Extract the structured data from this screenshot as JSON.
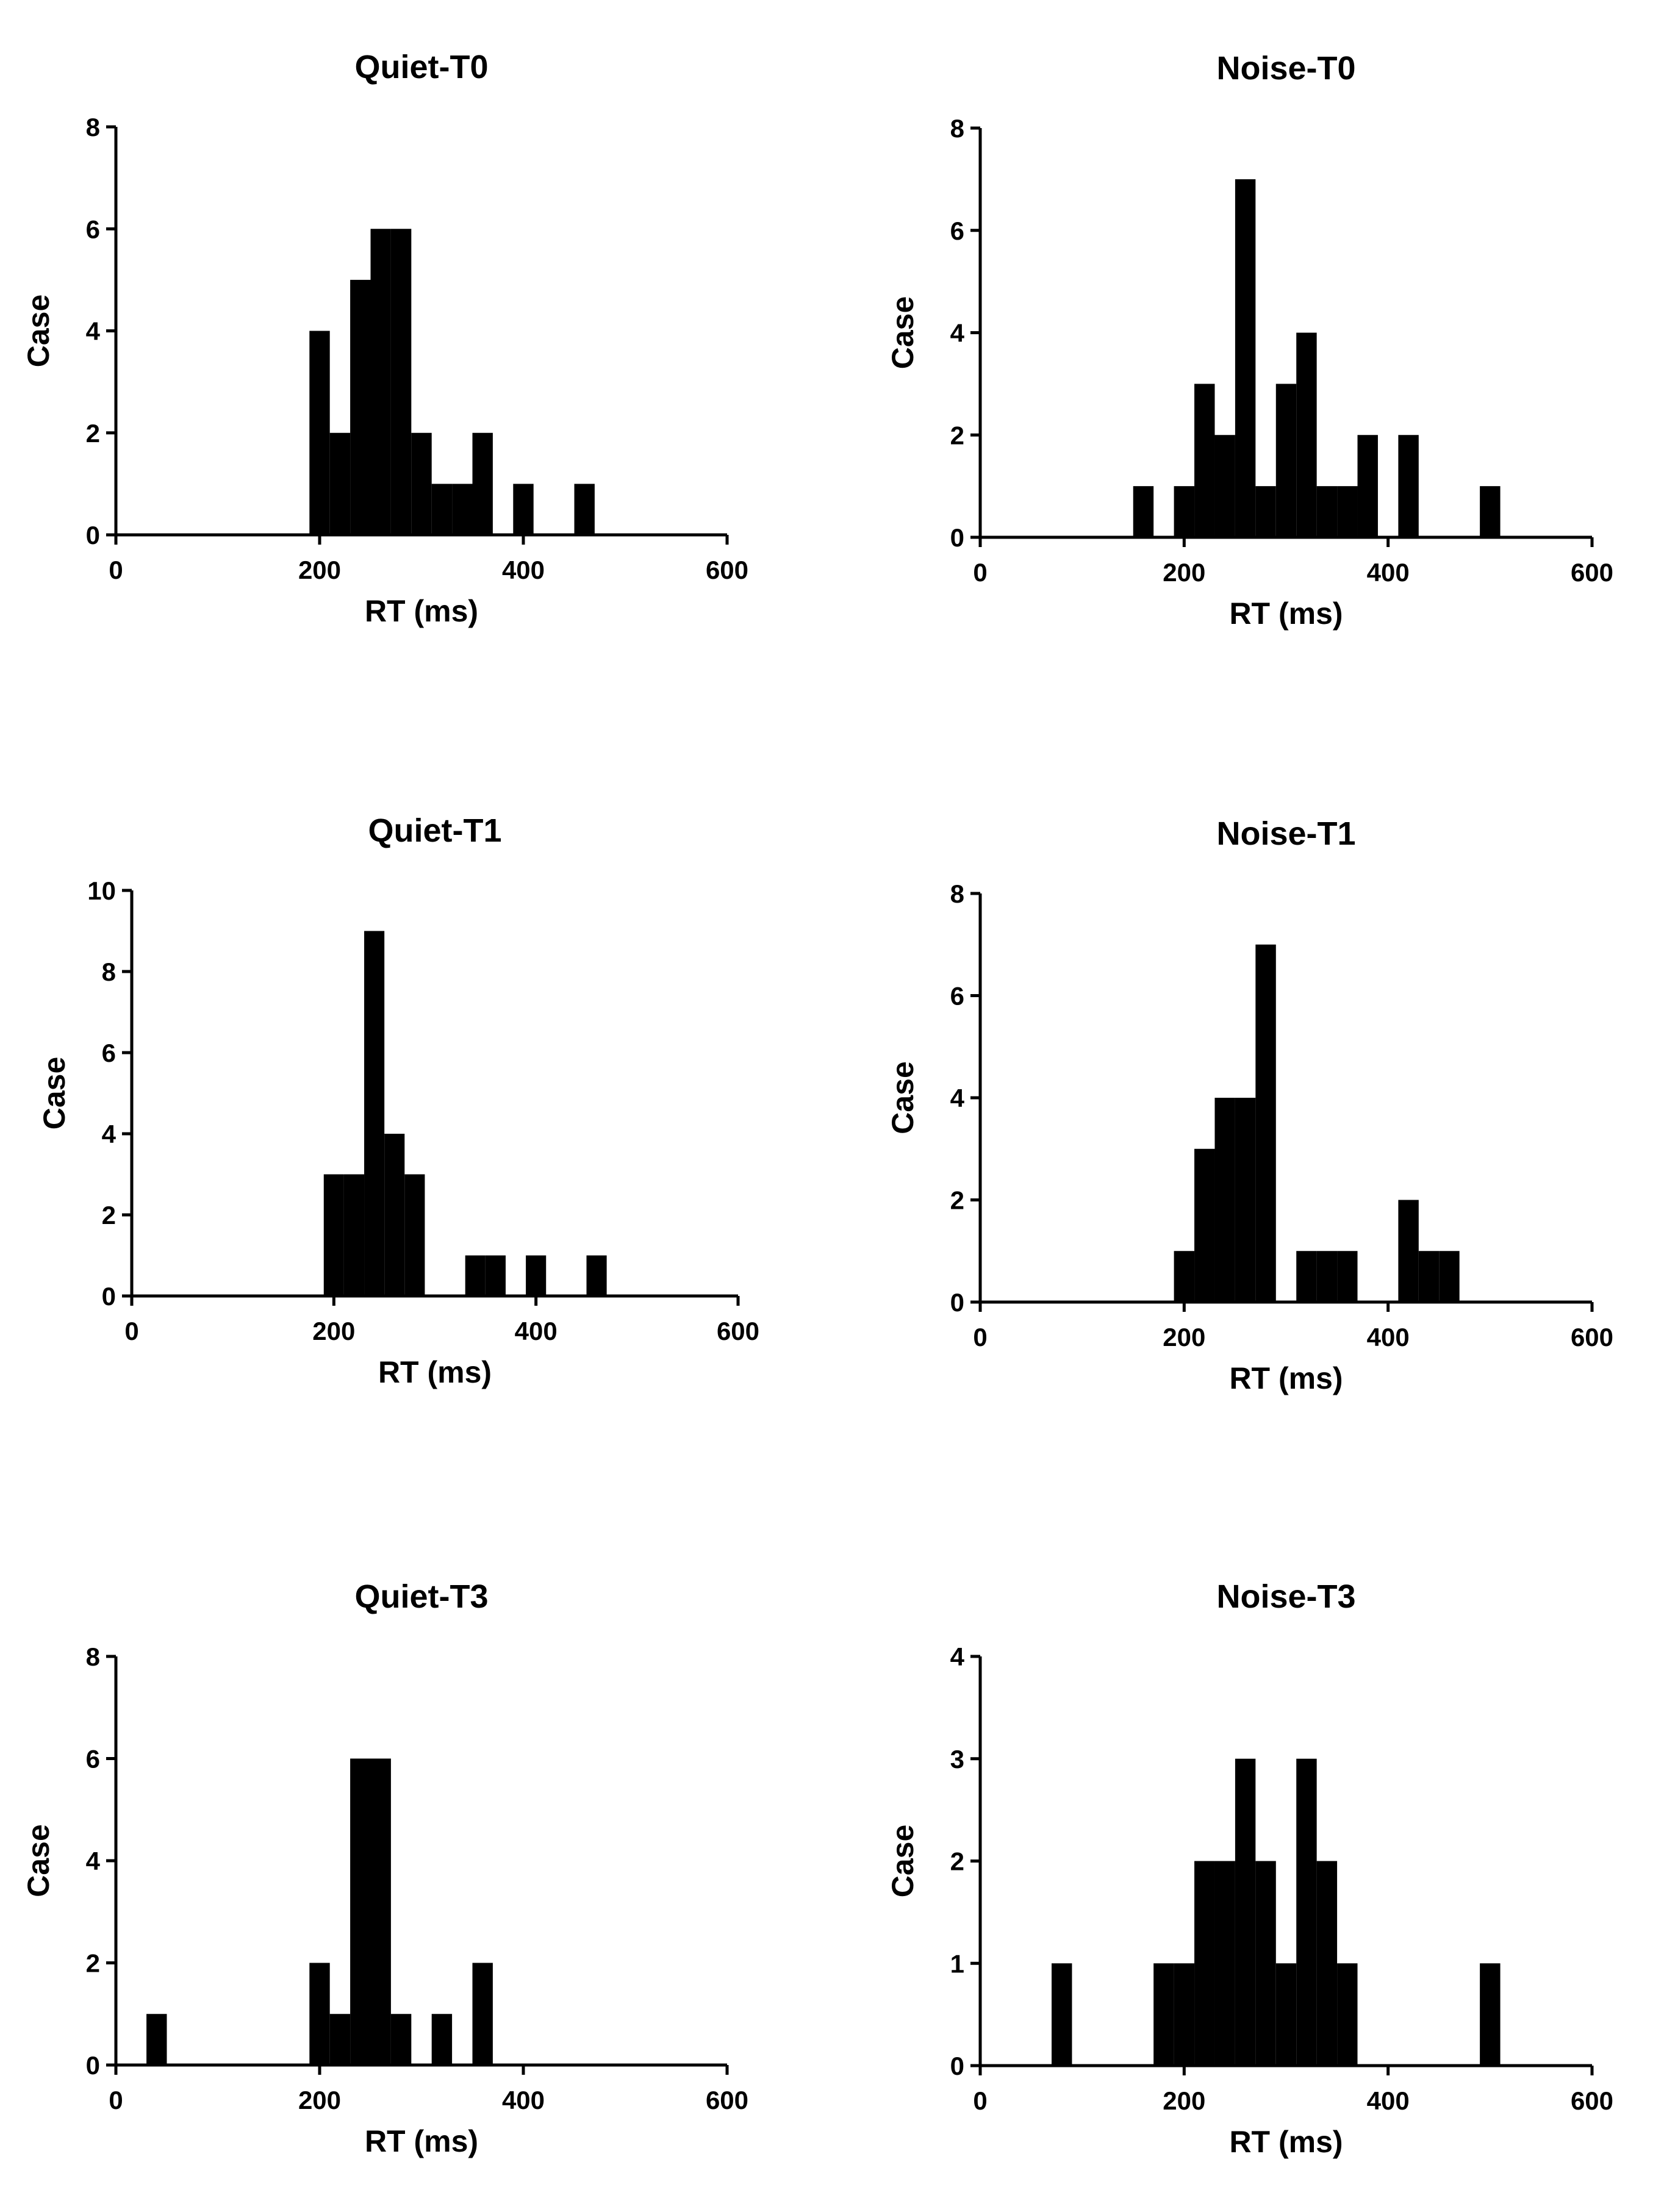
{
  "colors": {
    "bar": "#000000",
    "axis": "#000000",
    "background": "#ffffff"
  },
  "chart_data": [
    {
      "type": "bar",
      "title": "Quiet-T0",
      "xlabel": "RT (ms)",
      "ylabel": "Case",
      "xlim": [
        0,
        600
      ],
      "ylim": [
        0,
        8
      ],
      "xticks": [
        0,
        200,
        400,
        600
      ],
      "yticks": [
        0,
        2,
        4,
        6,
        8
      ],
      "bin_width": 20,
      "bins": [
        {
          "x": 200,
          "count": 4
        },
        {
          "x": 220,
          "count": 2
        },
        {
          "x": 240,
          "count": 5
        },
        {
          "x": 260,
          "count": 6
        },
        {
          "x": 280,
          "count": 6
        },
        {
          "x": 300,
          "count": 2
        },
        {
          "x": 320,
          "count": 1
        },
        {
          "x": 340,
          "count": 1
        },
        {
          "x": 360,
          "count": 2
        },
        {
          "x": 400,
          "count": 1
        },
        {
          "x": 460,
          "count": 1
        }
      ]
    },
    {
      "type": "bar",
      "title": "Noise-T0",
      "xlabel": "RT (ms)",
      "ylabel": "Case",
      "xlim": [
        0,
        600
      ],
      "ylim": [
        0,
        8
      ],
      "xticks": [
        0,
        200,
        400,
        600
      ],
      "yticks": [
        0,
        2,
        4,
        6,
        8
      ],
      "bin_width": 20,
      "bins": [
        {
          "x": 160,
          "count": 1
        },
        {
          "x": 200,
          "count": 1
        },
        {
          "x": 220,
          "count": 3
        },
        {
          "x": 240,
          "count": 2
        },
        {
          "x": 260,
          "count": 7
        },
        {
          "x": 280,
          "count": 1
        },
        {
          "x": 300,
          "count": 3
        },
        {
          "x": 320,
          "count": 4
        },
        {
          "x": 340,
          "count": 1
        },
        {
          "x": 360,
          "count": 1
        },
        {
          "x": 380,
          "count": 2
        },
        {
          "x": 420,
          "count": 2
        },
        {
          "x": 500,
          "count": 1
        }
      ]
    },
    {
      "type": "bar",
      "title": "Quiet-T1",
      "xlabel": "RT (ms)",
      "ylabel": "Case",
      "xlim": [
        0,
        600
      ],
      "ylim": [
        0,
        10
      ],
      "xticks": [
        0,
        200,
        400,
        600
      ],
      "yticks": [
        0,
        2,
        4,
        6,
        8,
        10
      ],
      "bin_width": 20,
      "bins": [
        {
          "x": 200,
          "count": 3
        },
        {
          "x": 220,
          "count": 3
        },
        {
          "x": 240,
          "count": 9
        },
        {
          "x": 260,
          "count": 4
        },
        {
          "x": 280,
          "count": 3
        },
        {
          "x": 340,
          "count": 1
        },
        {
          "x": 360,
          "count": 1
        },
        {
          "x": 400,
          "count": 1
        },
        {
          "x": 460,
          "count": 1
        }
      ]
    },
    {
      "type": "bar",
      "title": "Noise-T1",
      "xlabel": "RT (ms)",
      "ylabel": "Case",
      "xlim": [
        0,
        600
      ],
      "ylim": [
        0,
        8
      ],
      "xticks": [
        0,
        200,
        400,
        600
      ],
      "yticks": [
        0,
        2,
        4,
        6,
        8
      ],
      "bin_width": 20,
      "bins": [
        {
          "x": 200,
          "count": 1
        },
        {
          "x": 220,
          "count": 3
        },
        {
          "x": 240,
          "count": 4
        },
        {
          "x": 260,
          "count": 4
        },
        {
          "x": 280,
          "count": 7
        },
        {
          "x": 320,
          "count": 1
        },
        {
          "x": 340,
          "count": 1
        },
        {
          "x": 360,
          "count": 1
        },
        {
          "x": 420,
          "count": 2
        },
        {
          "x": 440,
          "count": 1
        },
        {
          "x": 460,
          "count": 1
        }
      ]
    },
    {
      "type": "bar",
      "title": "Quiet-T3",
      "xlabel": "RT (ms)",
      "ylabel": "Case",
      "xlim": [
        0,
        600
      ],
      "ylim": [
        0,
        8
      ],
      "xticks": [
        0,
        200,
        400,
        600
      ],
      "yticks": [
        0,
        2,
        4,
        6,
        8
      ],
      "bin_width": 20,
      "bins": [
        {
          "x": 40,
          "count": 1
        },
        {
          "x": 200,
          "count": 2
        },
        {
          "x": 220,
          "count": 1
        },
        {
          "x": 240,
          "count": 6
        },
        {
          "x": 260,
          "count": 6
        },
        {
          "x": 280,
          "count": 1
        },
        {
          "x": 320,
          "count": 1
        },
        {
          "x": 360,
          "count": 2
        }
      ]
    },
    {
      "type": "bar",
      "title": "Noise-T3",
      "xlabel": "RT (ms)",
      "ylabel": "Case",
      "xlim": [
        0,
        600
      ],
      "ylim": [
        0,
        4
      ],
      "xticks": [
        0,
        200,
        400,
        600
      ],
      "yticks": [
        0,
        1,
        2,
        3,
        4
      ],
      "bin_width": 20,
      "bins": [
        {
          "x": 80,
          "count": 1
        },
        {
          "x": 180,
          "count": 1
        },
        {
          "x": 200,
          "count": 1
        },
        {
          "x": 220,
          "count": 2
        },
        {
          "x": 240,
          "count": 2
        },
        {
          "x": 260,
          "count": 3
        },
        {
          "x": 280,
          "count": 2
        },
        {
          "x": 300,
          "count": 1
        },
        {
          "x": 320,
          "count": 3
        },
        {
          "x": 340,
          "count": 2
        },
        {
          "x": 360,
          "count": 1
        },
        {
          "x": 500,
          "count": 1
        }
      ]
    }
  ]
}
